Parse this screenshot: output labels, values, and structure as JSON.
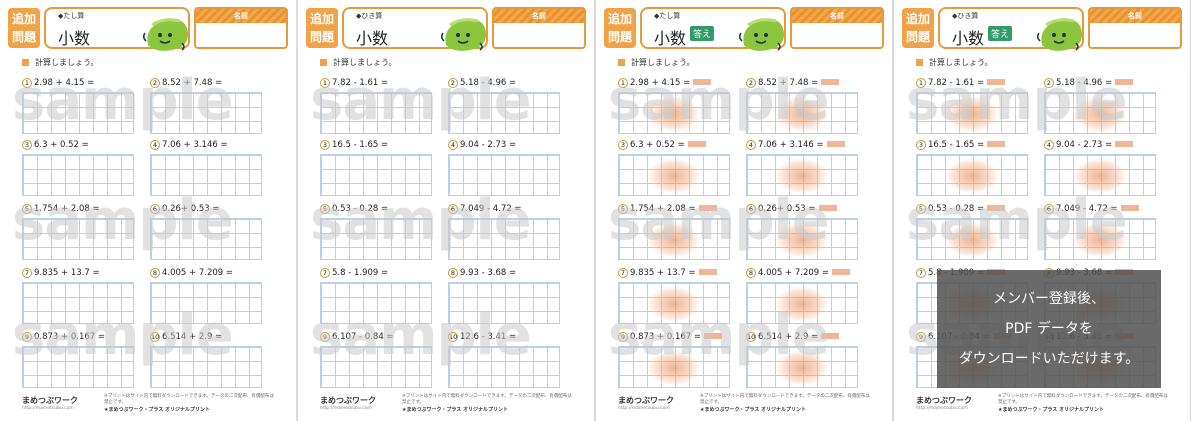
{
  "sheets": [
    {
      "badge": "追加\n問題",
      "type": "◆たし算",
      "title": "小数",
      "answer_label": "",
      "name_label": "名前",
      "instruction": "計算しましょう。",
      "problems": [
        {
          "n": "1",
          "text": "2.98 + 4.15 ="
        },
        {
          "n": "2",
          "text": "8.52 + 7.48 ="
        },
        {
          "n": "3",
          "text": "6.3 + 0.52 ="
        },
        {
          "n": "4",
          "text": "7.06 + 3.146 ="
        },
        {
          "n": "5",
          "text": "1.754 + 2.08 ="
        },
        {
          "n": "6",
          "text": "0.26+ 0.53 ="
        },
        {
          "n": "7",
          "text": "9.835 + 13.7 ="
        },
        {
          "n": "8",
          "text": "4.005 + 7.209 ="
        },
        {
          "n": "9",
          "text": "0.873 + 0.167 ="
        },
        {
          "n": "10",
          "text": "6.514 + 2.9 ="
        }
      ]
    },
    {
      "badge": "追加\n問題",
      "type": "◆ひき算",
      "title": "小数",
      "answer_label": "",
      "name_label": "名前",
      "instruction": "計算しましょう。",
      "problems": [
        {
          "n": "1",
          "text": "7.82 - 1.61 ="
        },
        {
          "n": "2",
          "text": "5.18 - 4.96 ="
        },
        {
          "n": "3",
          "text": "16.5 - 1.65 ="
        },
        {
          "n": "4",
          "text": "9.04 - 2.73 ="
        },
        {
          "n": "5",
          "text": "0.53 - 0.28 ="
        },
        {
          "n": "6",
          "text": "7.049 - 4.72 ="
        },
        {
          "n": "7",
          "text": "5.8 - 1.909 ="
        },
        {
          "n": "8",
          "text": "9.93 - 3.68 ="
        },
        {
          "n": "9",
          "text": "6.107 - 0.84 ="
        },
        {
          "n": "10",
          "text": "12.6 - 3.41 ="
        }
      ]
    },
    {
      "badge": "追加\n問題",
      "type": "◆たし算",
      "title": "小数",
      "answer_label": "答え",
      "name_label": "名前",
      "instruction": "計算しましょう。",
      "problems": [
        {
          "n": "1",
          "text": "2.98 + 4.15 ="
        },
        {
          "n": "2",
          "text": "8.52 + 7.48 ="
        },
        {
          "n": "3",
          "text": "6.3 + 0.52 ="
        },
        {
          "n": "4",
          "text": "7.06 + 3.146 ="
        },
        {
          "n": "5",
          "text": "1.754 + 2.08 ="
        },
        {
          "n": "6",
          "text": "0.26+ 0.53 ="
        },
        {
          "n": "7",
          "text": "9.835 + 13.7 ="
        },
        {
          "n": "8",
          "text": "4.005 + 7.209 ="
        },
        {
          "n": "9",
          "text": "0.873 + 0.167 ="
        },
        {
          "n": "10",
          "text": "6.514 + 2.9 ="
        }
      ]
    },
    {
      "badge": "追加\n問題",
      "type": "◆ひき算",
      "title": "小数",
      "answer_label": "答え",
      "name_label": "名前",
      "instruction": "計算しましょう。",
      "problems": [
        {
          "n": "1",
          "text": "7.82 - 1.61 ="
        },
        {
          "n": "2",
          "text": "5.18 - 4.96 ="
        },
        {
          "n": "3",
          "text": "16.5 - 1.65 ="
        },
        {
          "n": "4",
          "text": "9.04 - 2.73 ="
        },
        {
          "n": "5",
          "text": "0.53 - 0.28 ="
        },
        {
          "n": "6",
          "text": "7.049 - 4.72 ="
        },
        {
          "n": "7",
          "text": "5.8 - 1.909 ="
        },
        {
          "n": "8",
          "text": "9.93 - 3.68 ="
        },
        {
          "n": "9",
          "text": "6.107 - 0.84 ="
        },
        {
          "n": "10",
          "text": "12.6 - 3.41 ="
        }
      ]
    }
  ],
  "watermark": "sample",
  "footer": {
    "logo": "まめつぶワーク",
    "url": "http://mametsubu.com",
    "note": "※プリントはサイト内で無料ダウンロードできます。データの二次配布、有償配布は禁止です。",
    "brand": "★まめつぶワーク・プラス オリジナルプリント"
  },
  "overlay": {
    "line1": "メンバー登録後、",
    "line2": "PDF データを",
    "line3": "ダウンロードいただけます。"
  },
  "colors": {
    "accent": "#f0a248",
    "answer_badge": "#2f9d68",
    "grid": "#b8d1e8"
  }
}
